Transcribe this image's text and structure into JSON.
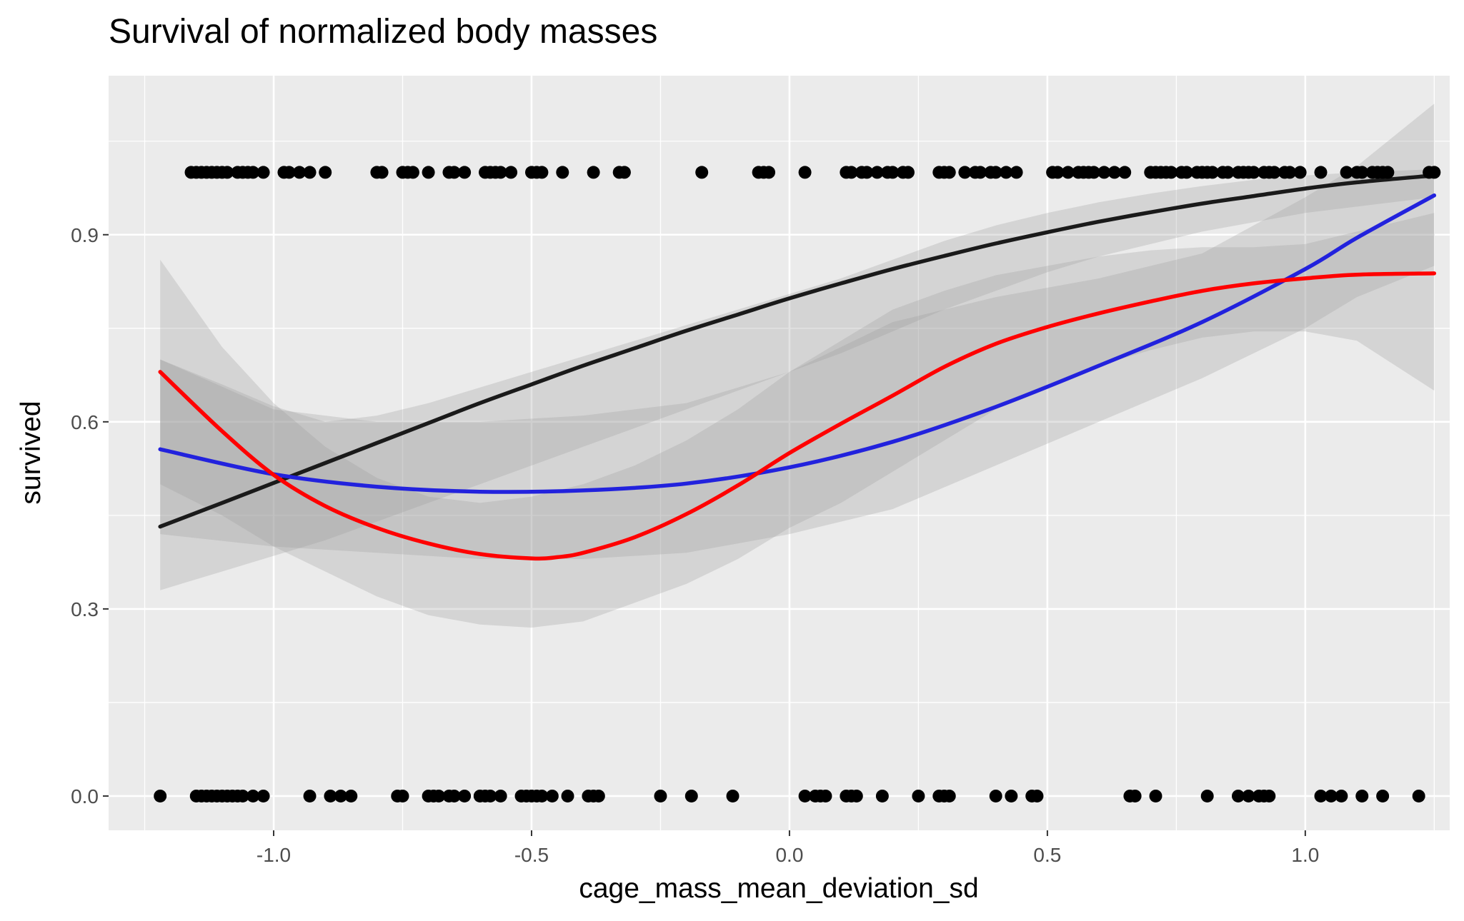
{
  "chart_data": {
    "type": "scatter",
    "title": "Survival of normalized body masses",
    "xlabel": "cage_mass_mean_deviation_sd",
    "ylabel": "survived",
    "xlim": [
      -1.32,
      1.28
    ],
    "ylim": [
      -0.055,
      1.155
    ],
    "x_ticks": [
      -1.0,
      -0.5,
      0.0,
      0.5,
      1.0
    ],
    "x_tick_labels": [
      "-1.0",
      "-0.5",
      "0.0",
      "0.5",
      "1.0"
    ],
    "y_ticks": [
      0.0,
      0.3,
      0.6,
      0.9
    ],
    "y_tick_labels": [
      "0.0",
      "0.3",
      "0.6",
      "0.9"
    ],
    "grid": true,
    "colors": {
      "panel": "#ebebeb",
      "grid": "#ffffff",
      "points": "#000000",
      "linear_fit": "#1a1a1a",
      "quadratic_fit": "#2222dd",
      "smooth_fit": "#ff0000",
      "confidence_band": "#999999"
    },
    "points_y1_x": [
      -1.16,
      -1.15,
      -1.14,
      -1.13,
      -1.12,
      -1.11,
      -1.1,
      -1.09,
      -1.07,
      -1.06,
      -1.05,
      -1.04,
      -1.02,
      -0.98,
      -0.97,
      -0.95,
      -0.93,
      -0.9,
      -0.8,
      -0.79,
      -0.75,
      -0.74,
      -0.73,
      -0.7,
      -0.66,
      -0.65,
      -0.63,
      -0.59,
      -0.58,
      -0.57,
      -0.56,
      -0.54,
      -0.5,
      -0.49,
      -0.48,
      -0.44,
      -0.38,
      -0.33,
      -0.32,
      -0.17,
      -0.06,
      -0.05,
      -0.04,
      0.03,
      0.11,
      0.12,
      0.14,
      0.15,
      0.17,
      0.19,
      0.2,
      0.22,
      0.23,
      0.29,
      0.3,
      0.31,
      0.34,
      0.36,
      0.37,
      0.39,
      0.4,
      0.42,
      0.44,
      0.51,
      0.52,
      0.54,
      0.56,
      0.57,
      0.58,
      0.59,
      0.61,
      0.63,
      0.65,
      0.7,
      0.71,
      0.72,
      0.73,
      0.74,
      0.76,
      0.77,
      0.79,
      0.8,
      0.81,
      0.82,
      0.84,
      0.85,
      0.87,
      0.88,
      0.89,
      0.9,
      0.92,
      0.93,
      0.94,
      0.96,
      0.97,
      0.99,
      1.03,
      1.08,
      1.1,
      1.11,
      1.13,
      1.14,
      1.15,
      1.16,
      1.24,
      1.25
    ],
    "points_y0_x": [
      -1.22,
      -1.15,
      -1.14,
      -1.13,
      -1.12,
      -1.11,
      -1.1,
      -1.09,
      -1.08,
      -1.07,
      -1.06,
      -1.04,
      -1.02,
      -0.93,
      -0.89,
      -0.87,
      -0.85,
      -0.76,
      -0.75,
      -0.7,
      -0.69,
      -0.68,
      -0.66,
      -0.65,
      -0.63,
      -0.6,
      -0.59,
      -0.58,
      -0.56,
      -0.52,
      -0.51,
      -0.5,
      -0.49,
      -0.48,
      -0.46,
      -0.43,
      -0.39,
      -0.38,
      -0.37,
      -0.25,
      -0.19,
      -0.11,
      0.03,
      0.05,
      0.06,
      0.07,
      0.11,
      0.12,
      0.13,
      0.18,
      0.25,
      0.29,
      0.3,
      0.31,
      0.4,
      0.43,
      0.47,
      0.48,
      0.66,
      0.67,
      0.71,
      0.81,
      0.87,
      0.89,
      0.91,
      0.92,
      0.93,
      1.03,
      1.05,
      1.07,
      1.11,
      1.15,
      1.22
    ],
    "series": [
      {
        "x": [
          -1.22,
          -1.1,
          -1.0,
          -0.9,
          -0.8,
          -0.7,
          -0.6,
          -0.5,
          -0.4,
          -0.3,
          -0.2,
          -0.1,
          0.0,
          0.1,
          0.2,
          0.3,
          0.4,
          0.5,
          0.6,
          0.7,
          0.8,
          0.9,
          1.0,
          1.1,
          1.25
        ],
        "y": [
          0.432,
          0.47,
          0.502,
          0.534,
          0.566,
          0.598,
          0.63,
          0.66,
          0.69,
          0.718,
          0.746,
          0.772,
          0.798,
          0.822,
          0.845,
          0.866,
          0.886,
          0.904,
          0.921,
          0.936,
          0.95,
          0.962,
          0.974,
          0.984,
          0.995
        ],
        "upper": [
          0.7,
          0.66,
          0.625,
          0.6,
          0.61,
          0.63,
          0.655,
          0.68,
          0.705,
          0.73,
          0.755,
          0.78,
          0.805,
          0.83,
          0.86,
          0.89,
          0.915,
          0.935,
          0.952,
          0.966,
          0.978,
          0.988,
          0.995,
          1.0,
          1.005
        ],
        "lower": [
          0.33,
          0.36,
          0.385,
          0.41,
          0.44,
          0.47,
          0.5,
          0.53,
          0.56,
          0.59,
          0.62,
          0.65,
          0.68,
          0.71,
          0.745,
          0.78,
          0.81,
          0.84,
          0.865,
          0.885,
          0.905,
          0.92,
          0.935,
          0.945,
          0.96
        ]
      },
      {
        "x": [
          -1.22,
          -1.0,
          -0.8,
          -0.6,
          -0.4,
          -0.2,
          0.0,
          0.2,
          0.4,
          0.6,
          0.8,
          1.0,
          1.1,
          1.25
        ],
        "y": [
          0.556,
          0.516,
          0.496,
          0.488,
          0.49,
          0.501,
          0.527,
          0.568,
          0.624,
          0.69,
          0.76,
          0.845,
          0.895,
          0.963
        ],
        "upper": [
          0.7,
          0.62,
          0.6,
          0.6,
          0.61,
          0.63,
          0.68,
          0.76,
          0.8,
          0.83,
          0.87,
          0.96,
          1.01,
          1.11
        ],
        "lower": [
          0.42,
          0.4,
          0.39,
          0.38,
          0.38,
          0.39,
          0.42,
          0.46,
          0.53,
          0.6,
          0.67,
          0.75,
          0.8,
          0.85
        ]
      },
      {
        "x": [
          -1.22,
          -1.1,
          -1.0,
          -0.9,
          -0.8,
          -0.7,
          -0.6,
          -0.5,
          -0.45,
          -0.4,
          -0.3,
          -0.2,
          -0.1,
          0.0,
          0.1,
          0.2,
          0.3,
          0.4,
          0.5,
          0.6,
          0.7,
          0.8,
          0.9,
          1.0,
          1.1,
          1.25
        ],
        "y": [
          0.68,
          0.585,
          0.515,
          0.465,
          0.43,
          0.405,
          0.388,
          0.381,
          0.383,
          0.39,
          0.415,
          0.452,
          0.498,
          0.55,
          0.597,
          0.642,
          0.688,
          0.725,
          0.752,
          0.774,
          0.793,
          0.81,
          0.822,
          0.83,
          0.836,
          0.838
        ],
        "upper": [
          0.86,
          0.72,
          0.63,
          0.56,
          0.51,
          0.48,
          0.47,
          0.48,
          0.49,
          0.5,
          0.53,
          0.57,
          0.62,
          0.68,
          0.73,
          0.78,
          0.81,
          0.835,
          0.85,
          0.865,
          0.875,
          0.88,
          0.88,
          0.885,
          0.905,
          0.935
        ],
        "lower": [
          0.5,
          0.45,
          0.4,
          0.36,
          0.32,
          0.29,
          0.275,
          0.27,
          0.275,
          0.28,
          0.31,
          0.34,
          0.38,
          0.43,
          0.47,
          0.52,
          0.57,
          0.62,
          0.66,
          0.69,
          0.715,
          0.735,
          0.745,
          0.745,
          0.73,
          0.65
        ]
      }
    ]
  }
}
